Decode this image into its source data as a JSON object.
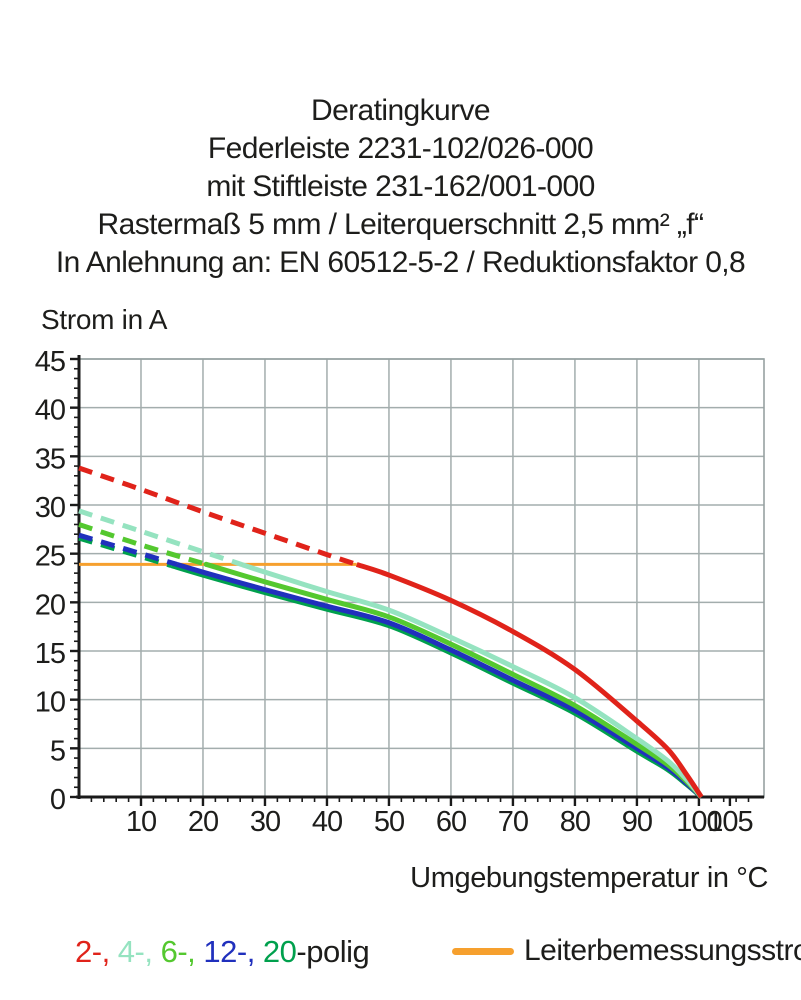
{
  "title": {
    "lines": [
      "Deratingkurve",
      "Federleiste 2231-102/026-000",
      "mit Stiftleiste 231-162/001-000",
      "Rastermaß 5 mm / Leiterquerschnitt 2,5 mm² „f“",
      "In Anlehnung an: EN 60512-5-2 / Reduktionsfaktor 0,8"
    ]
  },
  "y_axis_label": "Strom in A",
  "x_axis_label": "Umgebungstemperatur in °C",
  "legend": {
    "poles": [
      {
        "label": "2-,",
        "color": "#e0231a"
      },
      {
        "label": "4-,",
        "color": "#95e3c0"
      },
      {
        "label": "6-,",
        "color": "#54c82f"
      },
      {
        "label": "12-,",
        "color": "#2030bd"
      },
      {
        "label": "20",
        "color": "#00a04d"
      }
    ],
    "poles_suffix": "-polig",
    "reference": {
      "label": "Leiterbemessungsstrom",
      "color": "#f6a02e"
    }
  },
  "chart_data": {
    "type": "line",
    "title": "Deratingkurve",
    "xlabel": "Umgebungstemperatur in °C",
    "ylabel": "Strom in A",
    "xlim": [
      0,
      110.5
    ],
    "ylim": [
      0,
      45
    ],
    "grid": true,
    "x_gridlines": [
      10,
      20,
      30,
      40,
      50,
      60,
      70,
      80,
      90,
      100
    ],
    "x_major_ticks": [
      10,
      20,
      30,
      40,
      50,
      60,
      70,
      80,
      90,
      100,
      105
    ],
    "y_major_ticks": [
      0,
      5,
      10,
      15,
      20,
      25,
      30,
      35,
      40,
      45
    ],
    "x_minor_tick_step": 2,
    "y_minor_tick_step": 1,
    "x": [
      0,
      10,
      20,
      30,
      40,
      50,
      60,
      70,
      80,
      90,
      95,
      98,
      100.4
    ],
    "series": [
      {
        "name": "2-polig",
        "color": "#e0231a",
        "dash_until": 44.8,
        "values": [
          33.8,
          31.6,
          29.3,
          27.1,
          24.9,
          22.8,
          20.2,
          17.0,
          13.1,
          7.8,
          4.9,
          2.3,
          0
        ]
      },
      {
        "name": "4-polig",
        "color": "#95e3c0",
        "dash_until": 26.3,
        "values": [
          29.4,
          27.3,
          25.2,
          23.1,
          21.1,
          19.2,
          16.4,
          13.4,
          10.2,
          6.0,
          3.7,
          1.8,
          0
        ]
      },
      {
        "name": "6-polig",
        "color": "#54c82f",
        "dash_until": 20.5,
        "values": [
          28.0,
          25.9,
          24.0,
          22.1,
          20.3,
          18.5,
          15.7,
          12.6,
          9.4,
          5.4,
          3.3,
          1.6,
          0
        ]
      },
      {
        "name": "12-polig",
        "color": "#2030bd",
        "dash_until": 15.8,
        "values": [
          26.9,
          25.0,
          23.1,
          21.3,
          19.6,
          17.9,
          15.1,
          12.0,
          8.9,
          5.0,
          3.0,
          1.4,
          0
        ]
      },
      {
        "name": "20-polig",
        "color": "#00a04d",
        "dash_until": 14.9,
        "values": [
          26.6,
          24.7,
          22.8,
          21.0,
          19.3,
          17.6,
          14.8,
          11.7,
          8.6,
          4.7,
          2.8,
          1.3,
          0
        ]
      }
    ],
    "dashed_above_reference": true,
    "reference_line": {
      "name": "Leiterbemessungsstrom",
      "color": "#f6a02e",
      "value": 23.9,
      "x_start": 0,
      "x_end": 44.8
    },
    "legend_position": "bottom"
  }
}
